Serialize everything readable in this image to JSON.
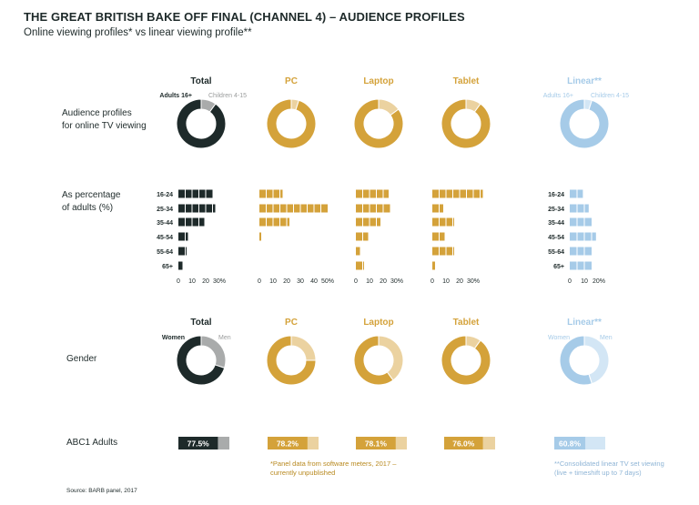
{
  "title": "THE GREAT BRITISH BAKE OFF FINAL (CHANNEL 4) – AUDIENCE PROFILES",
  "subtitle": "Online viewing profiles* vs linear viewing profile**",
  "source": "Source: BARB panel, 2017",
  "notes": {
    "panel": [
      "*Panel data from software meters, 2017 –",
      "currently unpublished"
    ],
    "linear": [
      "**Consolidated linear TV set viewing",
      "(live + timeshift up to 7 days)"
    ]
  },
  "colors": {
    "Total": "#1e2a2a",
    "PC": "#d4a23a",
    "Laptop": "#d4a23a",
    "Tablet": "#d4a23a",
    "Linear**": "#a6cbe8"
  },
  "light_colors": {
    "Total": "#a9abab",
    "PC": "#ebd2a0",
    "Laptop": "#ebd2a0",
    "Tablet": "#ebd2a0",
    "Linear**": "#d3e6f5"
  },
  "chart_data": [
    {
      "type": "pie",
      "title": "Audience profiles for online TV viewing",
      "row_label": [
        "Audience profiles",
        "for online TV viewing"
      ],
      "columns": [
        "Total",
        "PC",
        "Laptop",
        "Tablet",
        "Linear**"
      ],
      "legend": [
        "Adults 16+",
        "Children 4-15"
      ],
      "adults_share": [
        0.9,
        0.95,
        0.85,
        0.9,
        0.95
      ]
    },
    {
      "type": "bar",
      "title": "As percentage of adults (%)",
      "row_label": [
        "As percentage",
        "of adults (%)"
      ],
      "categories": [
        "16-24",
        "25-34",
        "35-44",
        "45-54",
        "55-64",
        "65+"
      ],
      "series": [
        {
          "name": "Total",
          "values": [
            25,
            27,
            19,
            7,
            6,
            3
          ],
          "ticks": [
            "0",
            "10",
            "20",
            "30%"
          ],
          "max": 30
        },
        {
          "name": "PC",
          "values": [
            17,
            50,
            22,
            1,
            0,
            0
          ],
          "ticks": [
            "0",
            "10",
            "20",
            "30",
            "40",
            "50%"
          ],
          "max": 50
        },
        {
          "name": "Laptop",
          "values": [
            24,
            25,
            18,
            9,
            3,
            6
          ],
          "ticks": [
            "0",
            "10",
            "20",
            "30%"
          ],
          "max": 30
        },
        {
          "name": "Tablet",
          "values": [
            37,
            8,
            16,
            9,
            16,
            2
          ],
          "ticks": [
            "0",
            "10",
            "20",
            "30%"
          ],
          "max": 30
        },
        {
          "name": "Linear**",
          "values": [
            9,
            13,
            15,
            18,
            15,
            15
          ],
          "ticks": [
            "0",
            "10",
            "20%"
          ],
          "max": 20
        }
      ],
      "linear_labels_shown": true
    },
    {
      "type": "pie",
      "title": "Gender",
      "row_label": [
        "Gender"
      ],
      "columns": [
        "Total",
        "PC",
        "Laptop",
        "Tablet",
        "Linear**"
      ],
      "legend": [
        "Women",
        "Men"
      ],
      "women_share": [
        0.7,
        0.75,
        0.6,
        0.9,
        0.55
      ]
    },
    {
      "type": "bar",
      "title": "ABC1 Adults",
      "row_label": [
        "ABC1 Adults"
      ],
      "columns": [
        "Total",
        "PC",
        "Laptop",
        "Tablet",
        "Linear**"
      ],
      "values": [
        77.5,
        78.2,
        78.1,
        76.0,
        60.8
      ],
      "value_labels": [
        "77.5%",
        "78.2%",
        "78.1%",
        "76.0%",
        "60.8%"
      ]
    }
  ]
}
